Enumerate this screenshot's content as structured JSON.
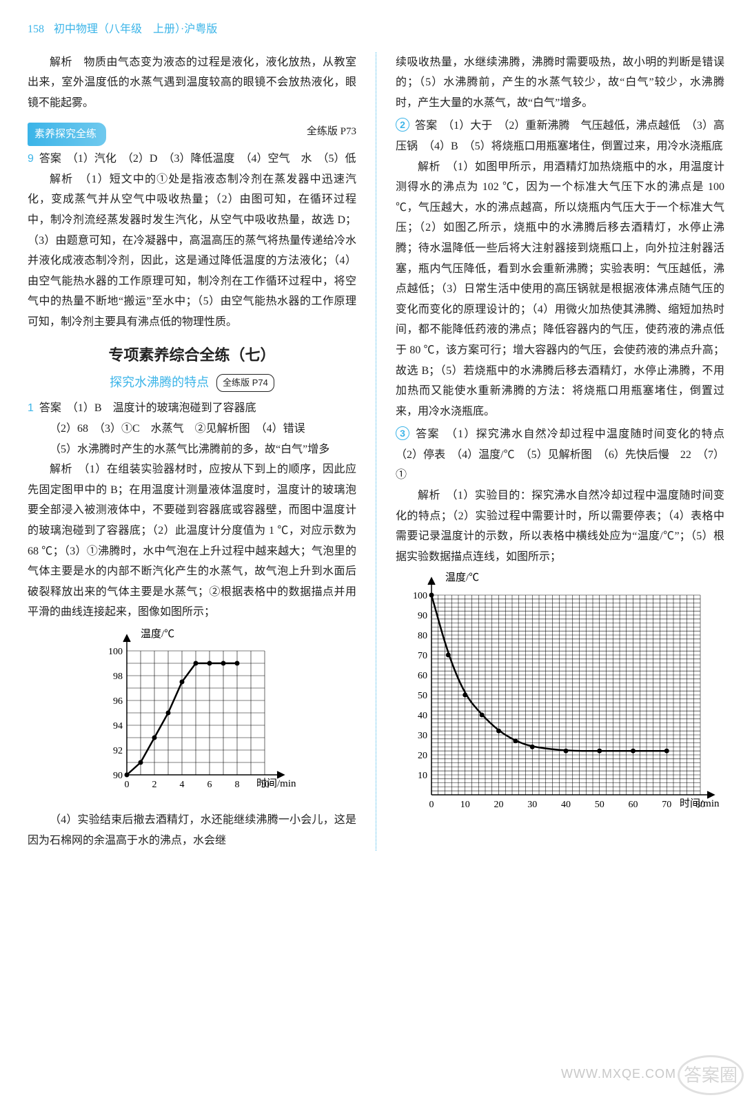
{
  "header": {
    "page": "158",
    "title": "初中物理（八年级　上册）·沪粤版"
  },
  "left": {
    "p1": "解析　物质由气态变为液态的过程是液化，液化放热，从教室出来，室外温度低的水蒸气遇到温度较高的眼镜不会放热液化，眼镜不能起雾。",
    "sectionLabel": "素养探究全练",
    "sectionRef": "全练版 P73",
    "q9num": "9",
    "q9ans": "答案　（1）汽化　（2）D　（3）降低温度　（4）空气　水　（5）低",
    "q9exp": "解析　（1）短文中的①处是指液态制冷剂在蒸发器中迅速汽化，变成蒸气并从空气中吸收热量；（2）由图可知，在循环过程中，制冷剂流经蒸发器时发生汽化，从空气中吸收热量，故选 D；（3）由题意可知，在冷凝器中，高温高压的蒸气将热量传递给冷水并液化成液态制冷剂，因此，这是通过降低温度的方法液化；（4）由空气能热水器的工作原理可知，制冷剂在工作循环过程中，将空气中的热量不断地“搬运”至水中；（5）由空气能热水器的工作原理可知，制冷剂主要具有沸点低的物理性质。",
    "bigTitle": "专项素养综合全练（七）",
    "subTitle": "探究水沸腾的特点",
    "subRef": "全练版 P74",
    "q1num": "1",
    "q1ans1": "答案　（1）B　温度计的玻璃泡碰到了容器底",
    "q1ans2": "（2）68　（3）①C　水蒸气　②见解析图　（4）错误",
    "q1ans3": "（5）水沸腾时产生的水蒸气比沸腾前的多，故“白气”增多",
    "q1exp1": "解析　（1）在组装实验器材时，应按从下到上的顺序，因此应先固定图甲中的 B；在用温度计测量液体温度时，温度计的玻璃泡要全部浸入被测液体中，不要碰到容器底或容器壁，而图中温度计的玻璃泡碰到了容器底；（2）此温度计分度值为 1 ℃，对应示数为 68 ℃；（3）①沸腾时，水中气泡在上升过程中越来越大；气泡里的气体主要是水的内部不断汽化产生的水蒸气，故气泡上升到水面后破裂释放出来的气体主要是水蒸气；②根据表格中的数据描点并用平滑的曲线连接起来，图像如图所示；",
    "q1exp2": "（4）实验结束后撤去酒精灯，水还能继续沸腾一小会儿，这是因为石棉网的余温高于水的沸点，水会继",
    "chart1": {
      "ylabel": "温度/℃",
      "xlabel": "时间/min",
      "yticks": [
        90,
        92,
        94,
        96,
        98,
        100
      ],
      "xticks": [
        0,
        2,
        4,
        6,
        8,
        10
      ],
      "points": [
        [
          0,
          90
        ],
        [
          1,
          91
        ],
        [
          2,
          93
        ],
        [
          3,
          95
        ],
        [
          4,
          97.5
        ],
        [
          5,
          99
        ],
        [
          6,
          99
        ],
        [
          7,
          99
        ],
        [
          8,
          99
        ]
      ],
      "line_color": "#000",
      "arrow": true
    }
  },
  "right": {
    "p1": "续吸收热量，水继续沸腾，沸腾时需要吸热，故小明的判断是错误的；（5）水沸腾前，产生的水蒸气较少，故“白气”较少，水沸腾时，产生大量的水蒸气，故“白气”增多。",
    "q2num": "2",
    "q2ans": "答案　（1）大于　（2）重新沸腾　气压越低，沸点越低　（3）高压锅　（4）B　（5）将烧瓶口用瓶塞堵住，倒置过来，用冷水浇瓶底",
    "q2exp": "解析　（1）如图甲所示，用酒精灯加热烧瓶中的水，用温度计测得水的沸点为 102 ℃，因为一个标准大气压下水的沸点是 100 ℃，气压越大，水的沸点越高，所以烧瓶内气压大于一个标准大气压；（2）如图乙所示，烧瓶中的水沸腾后移去酒精灯，水停止沸腾；待水温降低一些后将大注射器接到烧瓶口上，向外拉注射器活塞，瓶内气压降低，看到水会重新沸腾；实验表明：气压越低，沸点越低；（3）日常生活中使用的高压锅就是根据液体沸点随气压的变化而变化的原理设计的；（4）用微火加热使其沸腾、缩短加热时间，都不能降低药液的沸点；降低容器内的气压，使药液的沸点低于 80 ℃，该方案可行；增大容器内的气压，会使药液的沸点升高；故选 B；（5）若烧瓶中的水沸腾后移去酒精灯，水停止沸腾，不用加热而又能使水重新沸腾的方法：将烧瓶口用瓶塞堵住，倒置过来，用冷水浇瓶底。",
    "q3num": "3",
    "q3ans": "答案　（1）探究沸水自然冷却过程中温度随时间变化的特点　（2）停表　（4）温度/℃　（5）见解析图　（6）先快后慢　22　（7）①",
    "q3exp": "解析　（1）实验目的：探究沸水自然冷却过程中温度随时间变化的特点；（2）实验过程中需要计时，所以需要停表；（4）表格中需要记录温度计的示数，所以表格中横线处应为“温度/℃”；（5）根据实验数据描点连线，如图所示；",
    "chart2": {
      "ylabel": "温度/℃",
      "xlabel": "时间/min",
      "yticks": [
        10,
        20,
        30,
        40,
        50,
        60,
        70,
        80,
        90,
        100
      ],
      "xticks": [
        0,
        10,
        20,
        30,
        40,
        50,
        60,
        70,
        80
      ],
      "points": [
        [
          0,
          100
        ],
        [
          5,
          70
        ],
        [
          10,
          50
        ],
        [
          15,
          40
        ],
        [
          20,
          32
        ],
        [
          25,
          27
        ],
        [
          30,
          24
        ],
        [
          40,
          22
        ],
        [
          50,
          22
        ],
        [
          60,
          22
        ],
        [
          70,
          22
        ]
      ],
      "line_color": "#000",
      "arrow": true
    }
  },
  "watermark": {
    "circle": "答案圈",
    "url": "WWW.MXQE.COM"
  }
}
